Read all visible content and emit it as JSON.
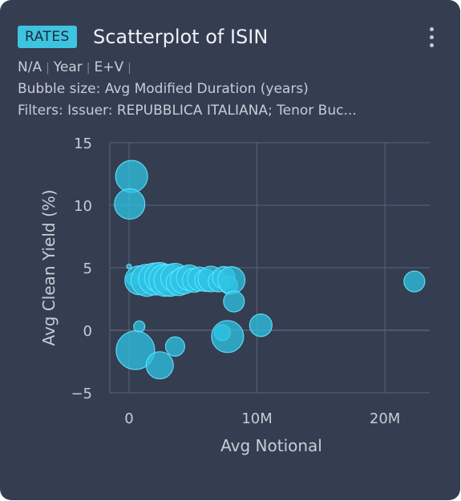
{
  "card": {
    "badge": "RATES",
    "title": "Scatterplot of ISIN",
    "meta_items": [
      "N/A",
      "Year",
      "E+V",
      ""
    ],
    "bubble_size": "Bubble size: Avg Modified Duration (years)",
    "filters": "Filters: Issuer: REPUBBLICA ITALIANA; Tenor Buc..."
  },
  "colors": {
    "card_bg": "#353d50",
    "accent": "#3ec3e0",
    "bubble_fill": "#2ec4e6",
    "bubble_stroke": "#5fe3ff",
    "grid": "#59637a",
    "text": "#c7ccd6"
  },
  "chart_data": {
    "type": "scatter",
    "xlabel": "Avg Notional",
    "ylabel": "Avg Clean Yield (%)",
    "xlim": [
      -1500000,
      23500000
    ],
    "ylim": [
      -5,
      15
    ],
    "xticks": [
      0,
      10000000,
      20000000
    ],
    "xtick_labels": [
      "0",
      "10M",
      "20M"
    ],
    "yticks": [
      -5,
      0,
      5,
      10,
      15
    ],
    "ytick_labels": [
      "−5",
      "0",
      "5",
      "10",
      "15"
    ],
    "size_variable": "Avg Modified Duration (years)",
    "points": [
      {
        "x": 200000,
        "y": 12.3,
        "size": 20
      },
      {
        "x": 50000,
        "y": 10.1,
        "size": 19
      },
      {
        "x": 0,
        "y": 5.1,
        "size": 3
      },
      {
        "x": 300000,
        "y": 4.1,
        "size": 8
      },
      {
        "x": 800000,
        "y": 4.0,
        "size": 18
      },
      {
        "x": 1400000,
        "y": 4.0,
        "size": 20
      },
      {
        "x": 2000000,
        "y": 4.1,
        "size": 20
      },
      {
        "x": 2400000,
        "y": 4.2,
        "size": 19
      },
      {
        "x": 2800000,
        "y": 4.0,
        "size": 20
      },
      {
        "x": 3200000,
        "y": 4.0,
        "size": 20
      },
      {
        "x": 3600000,
        "y": 4.2,
        "size": 18
      },
      {
        "x": 3900000,
        "y": 3.8,
        "size": 16
      },
      {
        "x": 4300000,
        "y": 4.0,
        "size": 17
      },
      {
        "x": 4700000,
        "y": 4.2,
        "size": 16
      },
      {
        "x": 5100000,
        "y": 4.0,
        "size": 15
      },
      {
        "x": 5500000,
        "y": 4.1,
        "size": 15
      },
      {
        "x": 6000000,
        "y": 4.0,
        "size": 14
      },
      {
        "x": 6400000,
        "y": 4.1,
        "size": 16
      },
      {
        "x": 7000000,
        "y": 3.9,
        "size": 13
      },
      {
        "x": 7400000,
        "y": 4.2,
        "size": 14
      },
      {
        "x": 7800000,
        "y": 3.6,
        "size": 11
      },
      {
        "x": 8000000,
        "y": 4.0,
        "size": 17
      },
      {
        "x": 8200000,
        "y": 2.3,
        "size": 13
      },
      {
        "x": 22300000,
        "y": 3.9,
        "size": 13
      },
      {
        "x": 800000,
        "y": 0.3,
        "size": 7
      },
      {
        "x": 500000,
        "y": -1.6,
        "size": 24
      },
      {
        "x": 2400000,
        "y": -2.8,
        "size": 17
      },
      {
        "x": 3600000,
        "y": -1.3,
        "size": 12
      },
      {
        "x": 7300000,
        "y": -0.2,
        "size": 10
      },
      {
        "x": 7700000,
        "y": -0.5,
        "size": 20
      },
      {
        "x": 10300000,
        "y": 0.4,
        "size": 14
      }
    ]
  }
}
